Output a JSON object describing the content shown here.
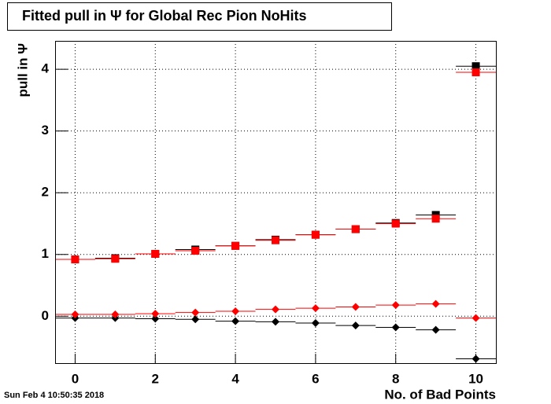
{
  "chart_data": {
    "type": "scatter",
    "title": "Fitted pull in  Ψ  for Global Rec Pion NoHits",
    "x_label": "No. of Bad Points",
    "y_label": "pull in  Ψ",
    "footer": "Sun Feb  4 10:50:35 2018",
    "x": [
      0,
      1,
      2,
      3,
      4,
      5,
      6,
      7,
      8,
      9,
      10
    ],
    "series": [
      {
        "color": "#000000",
        "marker": "square",
        "values": [
          0.92,
          0.94,
          1.01,
          1.08,
          1.14,
          1.24,
          1.32,
          1.41,
          1.51,
          1.64,
          4.05
        ]
      },
      {
        "color": "#ff0000",
        "marker": "square",
        "values": [
          0.92,
          0.93,
          1.01,
          1.06,
          1.14,
          1.23,
          1.32,
          1.41,
          1.5,
          1.58,
          3.95
        ]
      },
      {
        "color": "#000000",
        "marker": "diamond",
        "values": [
          -0.03,
          -0.03,
          -0.04,
          -0.05,
          -0.08,
          -0.09,
          -0.11,
          -0.15,
          -0.18,
          -0.22,
          -0.69
        ]
      },
      {
        "color": "#ff0000",
        "marker": "diamond",
        "values": [
          0.03,
          0.03,
          0.04,
          0.06,
          0.08,
          0.11,
          0.13,
          0.15,
          0.18,
          0.2,
          -0.03
        ]
      }
    ],
    "xlim": [
      -0.5,
      10.5
    ],
    "ylim": [
      -0.76,
      4.46
    ],
    "xticks": [
      0,
      2,
      4,
      6,
      8,
      10
    ],
    "yticks": [
      0,
      1,
      2,
      3,
      4
    ],
    "grid": true
  }
}
